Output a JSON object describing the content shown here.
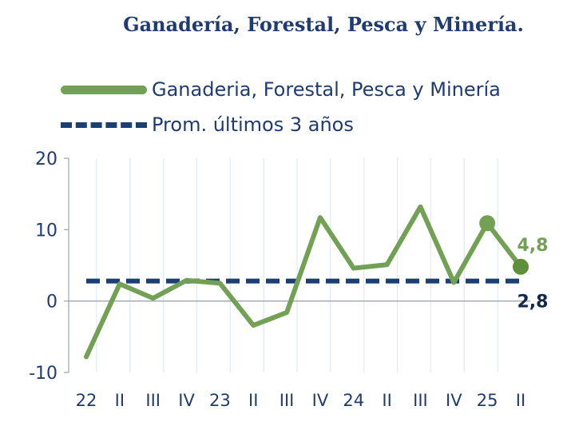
{
  "chart_data": {
    "type": "line",
    "title": "Ganadería, Forestal, Pesca y Minería.",
    "categories": [
      "22",
      "II",
      "III",
      "IV",
      "23",
      "II",
      "III",
      "IV",
      "24",
      "II",
      "III",
      "IV",
      "25",
      "II"
    ],
    "series": [
      {
        "name": "Ganaderia, Forestal, Pesca y Minería",
        "color": "#72a155",
        "style": "solid",
        "values": [
          -7.8,
          2.4,
          0.4,
          2.9,
          2.5,
          -3.4,
          -1.6,
          11.7,
          4.6,
          5.1,
          13.2,
          2.6,
          10.9,
          4.8
        ]
      },
      {
        "name": "Prom. últimos 3 años",
        "color": "#1a3f73",
        "style": "dashed",
        "values": [
          2.8,
          2.8,
          2.8,
          2.8,
          2.8,
          2.8,
          2.8,
          2.8,
          2.8,
          2.8,
          2.8,
          2.8,
          2.8,
          2.8
        ]
      }
    ],
    "ylim": [
      -10,
      20
    ],
    "yticks": [
      -10,
      0,
      10,
      20
    ],
    "ytick_labels": [
      "-10",
      "0",
      "10",
      "20"
    ],
    "grid": "vertical",
    "legend": "top-left",
    "annotations": {
      "last_value": "4,8",
      "average_value": "2,8"
    }
  }
}
